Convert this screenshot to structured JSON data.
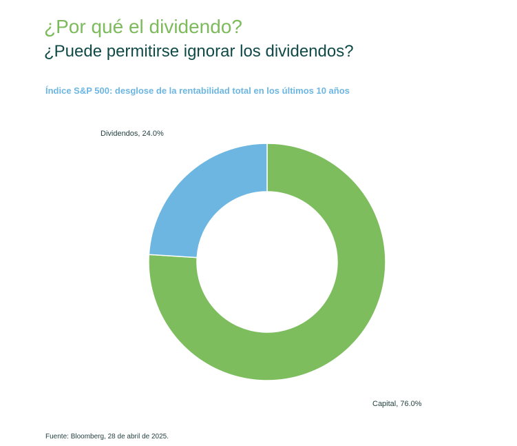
{
  "header": {
    "title": "¿Por qué el dividendo?",
    "subtitle": "¿Puede permitirse ignorar los dividendos?"
  },
  "footer": {
    "source": "Fuente: Bloomberg, 28 de abril de 2025."
  },
  "colors": {
    "title": "#7dba5c",
    "subtitle": "#0f4a47",
    "chart_title": "#6cb6e1",
    "text": "#1f3d3b",
    "dividendos": "#6cb6e1",
    "capital": "#7dbd5e"
  },
  "chart_data": {
    "type": "pie",
    "variant": "donut",
    "title": "Índice S&P 500: desglose de la rentabilidad total en los últimos 10 años",
    "slices": [
      {
        "label": "Capital, 76.0%",
        "value": 76.0,
        "color": "#7dbd5e"
      },
      {
        "label": "Dividendos, 24.0%",
        "value": 24.0,
        "color": "#6cb6e1"
      }
    ]
  }
}
